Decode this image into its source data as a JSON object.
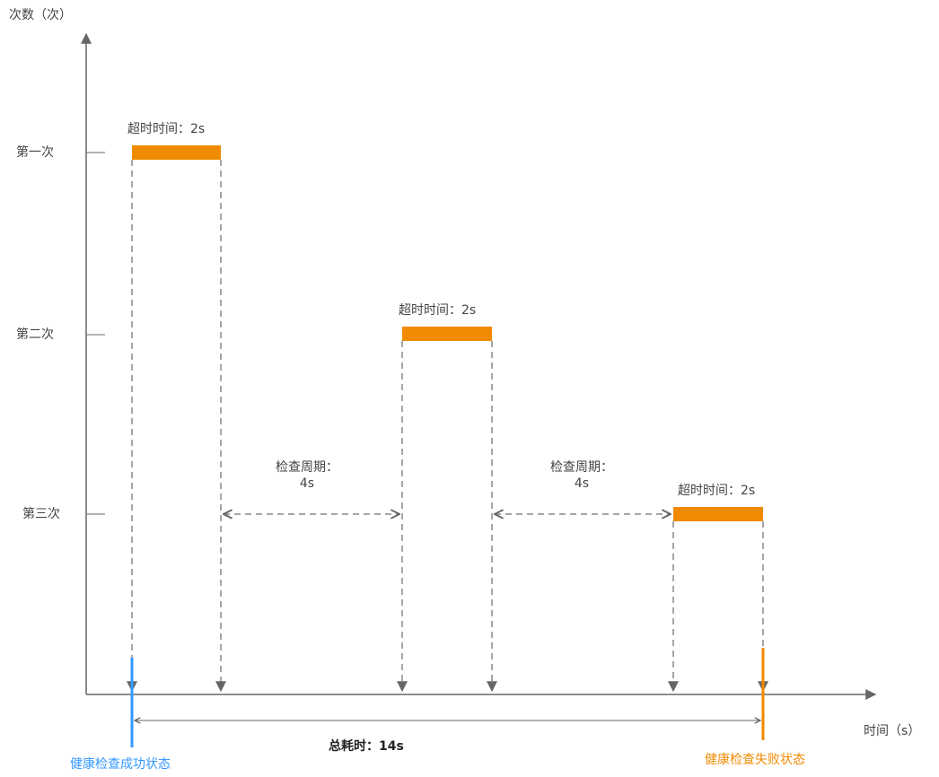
{
  "y_axis": {
    "title": "次数（次）",
    "levels": [
      "第一次",
      "第二次",
      "第三次"
    ]
  },
  "x_axis": {
    "title": "时间（s）"
  },
  "timeout_label": "超时时间：2s",
  "period_label": {
    "line1": "检查周期：",
    "line2": "4s"
  },
  "total_label": "总耗时：14s",
  "start_state": "健康检查成功状态",
  "end_state": "健康检查失败状态",
  "colors": {
    "timeout_bar": "#F08A00",
    "success": "#3399FF",
    "failure": "#F08A00",
    "axis": "#666666",
    "guide": "#888888"
  }
}
